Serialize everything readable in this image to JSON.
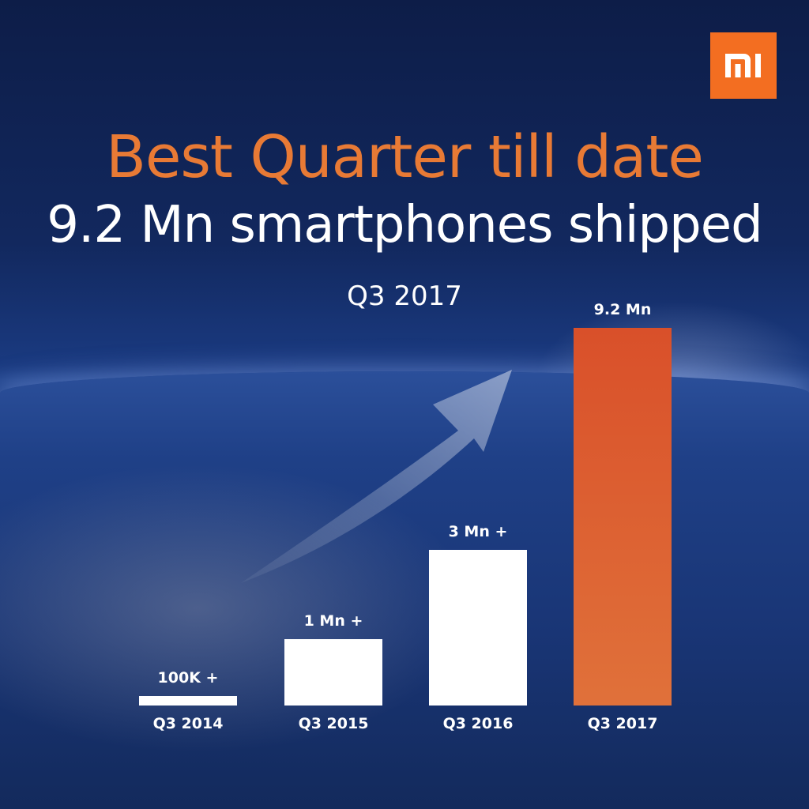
{
  "brand": {
    "logo_text": "MI",
    "color": "#f36e21"
  },
  "title": "Best Quarter till date",
  "subtitle": "9.2 Mn smartphones shipped",
  "period": "Q3 2017",
  "chart_data": {
    "type": "bar",
    "title": "Best Quarter till date",
    "categories": [
      "Q3 2014",
      "Q3 2015",
      "Q3 2016",
      "Q3 2017"
    ],
    "values": [
      0.1,
      1,
      3,
      9.2
    ],
    "unit": "Mn smartphones",
    "data_labels": [
      "100K +",
      "1 Mn +",
      "3 Mn +",
      "9.2 Mn"
    ],
    "highlight_index": 3,
    "colors": {
      "default": "#ffffff",
      "highlight": "#dc5a2e"
    },
    "xlabel": "",
    "ylabel": "",
    "grid": false
  }
}
